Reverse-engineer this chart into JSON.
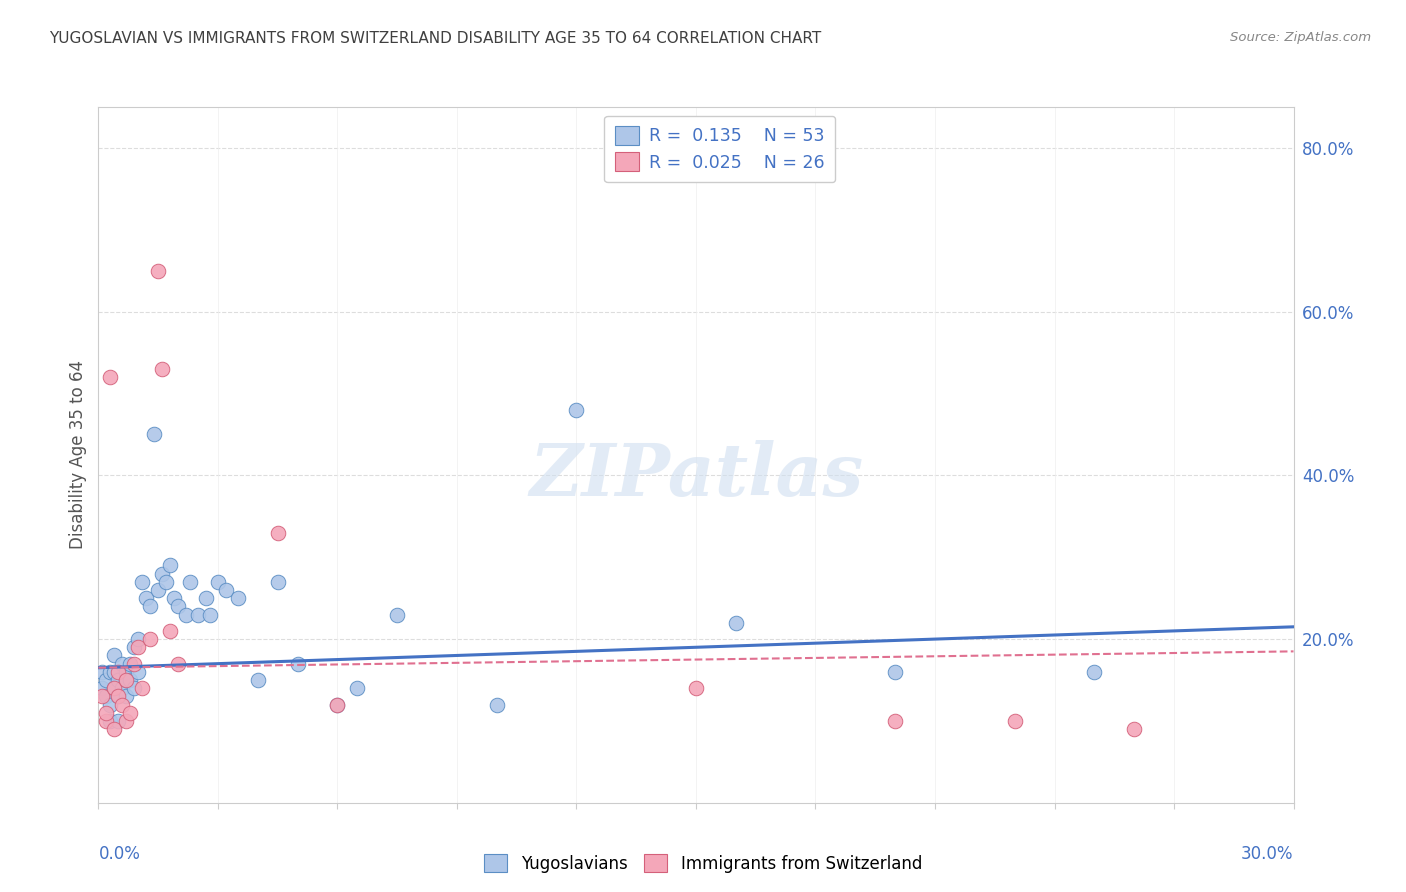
{
  "title": "YUGOSLAVIAN VS IMMIGRANTS FROM SWITZERLAND DISABILITY AGE 35 TO 64 CORRELATION CHART",
  "source": "Source: ZipAtlas.com",
  "ylabel": "Disability Age 35 to 64",
  "color_blue": "#aec6e8",
  "color_pink": "#f4a7b9",
  "color_blue_edge": "#5b8ec4",
  "color_pink_edge": "#d4607a",
  "color_line_blue": "#4472c4",
  "color_line_pink": "#e07090",
  "background_color": "#ffffff",
  "grid_color": "#dddddd",
  "title_color": "#404040",
  "text_blue": "#4472c4",
  "xmin": 0.0,
  "xmax": 0.3,
  "ymin": 0.0,
  "ymax": 0.85,
  "yticks": [
    0.2,
    0.4,
    0.6,
    0.8
  ],
  "ytick_labels": [
    "20.0%",
    "40.0%",
    "60.0%",
    "80.0%"
  ],
  "watermark": "ZIPatlas",
  "legend_r1": "R =  0.135",
  "legend_n1": "N = 53",
  "legend_r2": "R =  0.025",
  "legend_n2": "N = 26",
  "yugo_x": [
    0.001,
    0.001,
    0.002,
    0.002,
    0.003,
    0.003,
    0.003,
    0.004,
    0.004,
    0.004,
    0.005,
    0.005,
    0.005,
    0.006,
    0.006,
    0.007,
    0.007,
    0.007,
    0.008,
    0.008,
    0.009,
    0.009,
    0.01,
    0.01,
    0.011,
    0.012,
    0.013,
    0.014,
    0.015,
    0.016,
    0.017,
    0.018,
    0.019,
    0.02,
    0.022,
    0.023,
    0.025,
    0.027,
    0.028,
    0.03,
    0.032,
    0.035,
    0.04,
    0.045,
    0.05,
    0.06,
    0.065,
    0.075,
    0.1,
    0.12,
    0.16,
    0.2,
    0.25
  ],
  "yugo_y": [
    0.14,
    0.16,
    0.13,
    0.15,
    0.12,
    0.16,
    0.1,
    0.14,
    0.16,
    0.18,
    0.13,
    0.15,
    0.1,
    0.14,
    0.17,
    0.15,
    0.13,
    0.16,
    0.17,
    0.15,
    0.14,
    0.19,
    0.16,
    0.2,
    0.27,
    0.25,
    0.24,
    0.45,
    0.26,
    0.28,
    0.27,
    0.29,
    0.25,
    0.24,
    0.23,
    0.27,
    0.23,
    0.25,
    0.23,
    0.27,
    0.26,
    0.25,
    0.15,
    0.27,
    0.17,
    0.12,
    0.14,
    0.23,
    0.12,
    0.48,
    0.22,
    0.16,
    0.16
  ],
  "swiss_x": [
    0.001,
    0.002,
    0.002,
    0.003,
    0.004,
    0.004,
    0.005,
    0.005,
    0.006,
    0.007,
    0.007,
    0.008,
    0.009,
    0.01,
    0.011,
    0.013,
    0.015,
    0.016,
    0.018,
    0.02,
    0.045,
    0.06,
    0.15,
    0.2,
    0.23,
    0.26
  ],
  "swiss_y": [
    0.13,
    0.1,
    0.11,
    0.52,
    0.14,
    0.09,
    0.16,
    0.13,
    0.12,
    0.1,
    0.15,
    0.11,
    0.17,
    0.19,
    0.14,
    0.2,
    0.65,
    0.53,
    0.21,
    0.17,
    0.33,
    0.12,
    0.14,
    0.1,
    0.1,
    0.09
  ],
  "blue_line_x": [
    0.0,
    0.3
  ],
  "blue_line_y": [
    0.165,
    0.215
  ],
  "pink_line_x": [
    0.0,
    0.3
  ],
  "pink_line_y": [
    0.165,
    0.185
  ]
}
